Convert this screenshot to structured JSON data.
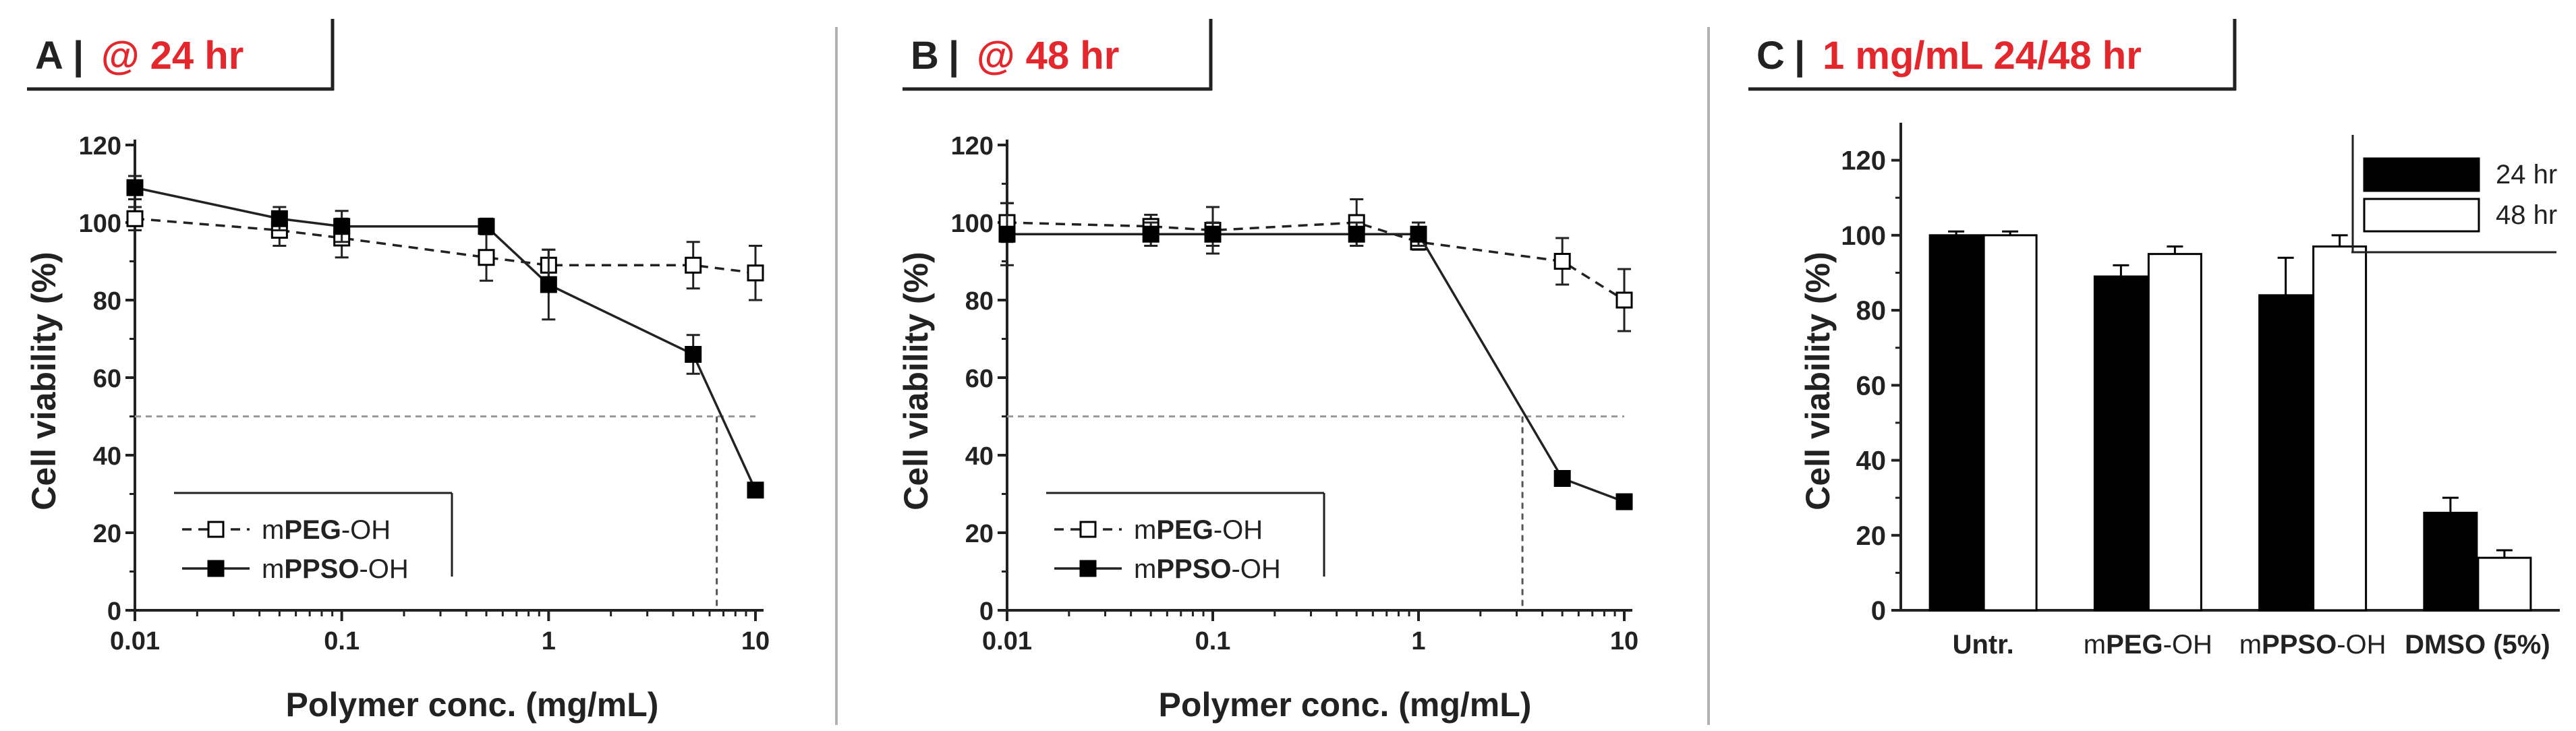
{
  "colors": {
    "panel_title_red": "#e3272d",
    "text": "#222222",
    "bar_24": "#000000",
    "bar_48": "#ffffff",
    "divider": "#b3b3b3",
    "ref_line": "#9a9a9a"
  },
  "panels": [
    {
      "letter": "A",
      "sep": "|",
      "title": "@ 24 hr",
      "xlabel": "Polymer conc. (mg/mL)",
      "ylabel": "Cell viability (%)",
      "xticks": [
        "0.01",
        "0.1",
        "1",
        "10"
      ],
      "yticks": [
        "0",
        "20",
        "40",
        "60",
        "80",
        "100",
        "120"
      ]
    },
    {
      "letter": "B",
      "sep": "|",
      "title": "@ 48 hr",
      "xlabel": "Polymer conc. (mg/mL)",
      "ylabel": "Cell viability (%)",
      "xticks": [
        "0.01",
        "0.1",
        "1",
        "10"
      ],
      "yticks": [
        "0",
        "20",
        "40",
        "60",
        "80",
        "100",
        "120"
      ]
    },
    {
      "letter": "C",
      "sep": "|",
      "title": "1 mg/mL 24/48 hr",
      "xlabel": "",
      "ylabel": "Cell viability (%)",
      "yticks": [
        "0",
        "20",
        "40",
        "60",
        "80",
        "100",
        "120"
      ]
    }
  ],
  "chart_data": [
    {
      "type": "line",
      "x_scale": "log",
      "xlim": [
        0.01,
        10
      ],
      "ylim": [
        0,
        120
      ],
      "reference_line_y": 50,
      "ic50_x": 6.5,
      "series": [
        {
          "name": "mPEG-OH",
          "name_parts": [
            "m",
            "PEG",
            "-OH"
          ],
          "marker": "open-square",
          "line": "dashed",
          "x": [
            0.01,
            0.05,
            0.1,
            0.5,
            1,
            5,
            10
          ],
          "y": [
            101,
            98,
            96,
            91,
            89,
            89,
            87
          ],
          "err": [
            3,
            4,
            5,
            6,
            4,
            6,
            7
          ]
        },
        {
          "name": "mPPSO-OH",
          "name_parts": [
            "m",
            "PPSO",
            "-OH"
          ],
          "marker": "filled-square",
          "line": "solid",
          "x": [
            0.01,
            0.05,
            0.1,
            0.5,
            1,
            5,
            10
          ],
          "y": [
            109,
            101,
            99,
            99,
            84,
            66,
            31
          ],
          "err": [
            3,
            3,
            4,
            2,
            9,
            5,
            1
          ]
        }
      ]
    },
    {
      "type": "line",
      "x_scale": "log",
      "xlim": [
        0.01,
        10
      ],
      "ylim": [
        0,
        120
      ],
      "reference_line_y": 50,
      "ic50_x": 3.2,
      "series": [
        {
          "name": "mPEG-OH",
          "name_parts": [
            "m",
            "PEG",
            "-OH"
          ],
          "marker": "open-square",
          "line": "dashed",
          "x": [
            0.01,
            0.05,
            0.1,
            0.5,
            1,
            5,
            10
          ],
          "y": [
            100,
            99,
            98,
            100,
            95,
            90,
            80
          ],
          "err": [
            5,
            3,
            6,
            6,
            2,
            6,
            8
          ]
        },
        {
          "name": "mPPSO-OH",
          "name_parts": [
            "m",
            "PPSO",
            "-OH"
          ],
          "marker": "filled-square",
          "line": "solid",
          "x": [
            0.01,
            0.05,
            0.1,
            0.5,
            1,
            5,
            10
          ],
          "y": [
            97,
            97,
            97,
            97,
            97,
            34,
            28
          ],
          "err": [
            8,
            3,
            3,
            3,
            3,
            1,
            1
          ]
        }
      ]
    },
    {
      "type": "bar",
      "ylim": [
        0,
        130
      ],
      "categories": [
        "Untr.",
        "mPEG-OH",
        "mPPSO-OH",
        "DMSO (5%)"
      ],
      "category_parts": [
        [
          "Untr."
        ],
        [
          "m",
          "PEG",
          "-OH"
        ],
        [
          "m",
          "PPSO",
          "-OH"
        ],
        [
          "DMSO (5%)"
        ]
      ],
      "series": [
        {
          "name": "24 hr",
          "values": [
            100,
            89,
            84,
            26
          ],
          "err": [
            1,
            3,
            10,
            4
          ]
        },
        {
          "name": "48 hr",
          "values": [
            100,
            95,
            97,
            14
          ],
          "err": [
            1,
            2,
            3,
            2
          ]
        }
      ]
    }
  ]
}
